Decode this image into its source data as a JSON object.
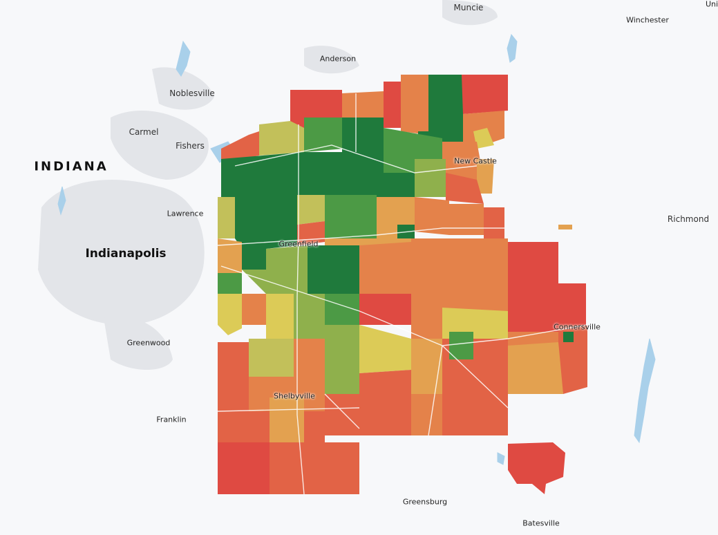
{
  "map": {
    "state_label": "INDIANA",
    "colors": {
      "dark_green": "#1f7a3c",
      "green": "#4c9a45",
      "olive": "#8fb04c",
      "yellow_green": "#c2c05a",
      "yellow": "#dccb57",
      "tan": "#e3a150",
      "orange": "#e4824a",
      "red_orange": "#e26346",
      "red": "#df4a42",
      "water": "#a9d0ea",
      "urban": "#e2e4e8"
    },
    "cities": {
      "muncie": "Muncie",
      "winchester": "Winchester",
      "anderson": "Anderson",
      "noblesville": "Noblesville",
      "carmel": "Carmel",
      "fishers": "Fishers",
      "lawrence": "Lawrence",
      "indianapolis": "Indianapolis",
      "greenfield": "Greenfield",
      "new_castle": "New Castle",
      "richmond": "Richmond",
      "connersville": "Connersville",
      "greenwood": "Greenwood",
      "shelbyville": "Shelbyville",
      "franklin": "Franklin",
      "greensburg": "Greensburg",
      "batesville": "Batesville",
      "union_city": "Uni"
    }
  }
}
